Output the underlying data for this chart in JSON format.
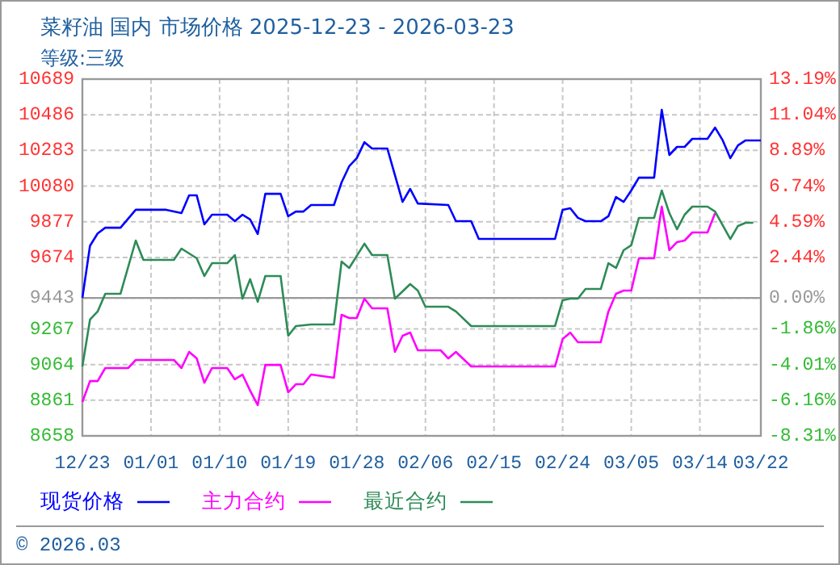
{
  "chart_data": {
    "type": "line",
    "title": "菜籽油 国内 市场价格 2025-12-23 - 2026-03-23",
    "subtitle": "等级:三级",
    "annotations": [
      "© 2026.03"
    ],
    "xlim": [
      "2025-12-23",
      "2026-03-22"
    ],
    "xticks": [
      {
        "value": "2025-12-23",
        "label": "12/23"
      },
      {
        "value": "2026-01-01",
        "label": "01/01"
      },
      {
        "value": "2026-01-10",
        "label": "01/10"
      },
      {
        "value": "2026-01-19",
        "label": "01/19"
      },
      {
        "value": "2026-01-28",
        "label": "01/28"
      },
      {
        "value": "2026-02-06",
        "label": "02/06"
      },
      {
        "value": "2026-02-15",
        "label": "02/15"
      },
      {
        "value": "2026-02-24",
        "label": "02/24"
      },
      {
        "value": "2026-03-05",
        "label": "03/05"
      },
      {
        "value": "2026-03-14",
        "label": "03/14"
      },
      {
        "value": "2026-03-22",
        "label": "03/22"
      }
    ],
    "ylim": [
      8658,
      10689
    ],
    "yticks": [
      10689,
      10486,
      10283,
      10080,
      9877,
      9674,
      9443,
      9267,
      9064,
      8861,
      8658
    ],
    "y2lim": [
      -8.31,
      13.19
    ],
    "y2ticks": [
      {
        "value": 13.19,
        "label": "13.19%"
      },
      {
        "value": 11.04,
        "label": "11.04%"
      },
      {
        "value": 8.89,
        "label": "8.89%"
      },
      {
        "value": 6.74,
        "label": "6.74%"
      },
      {
        "value": 4.59,
        "label": "4.59%"
      },
      {
        "value": 2.44,
        "label": "2.44%"
      },
      {
        "value": 0,
        "label": "0.00%"
      },
      {
        "value": -1.86,
        "label": "-1.86%"
      },
      {
        "value": -4.01,
        "label": "-4.01%"
      },
      {
        "value": -6.16,
        "label": "-6.16%"
      },
      {
        "value": -8.31,
        "label": "-8.31%"
      }
    ],
    "ref_lines": [
      {
        "axis": "y",
        "value": 9443,
        "color": "#999999"
      }
    ],
    "grid": true,
    "legend": "bottom",
    "marker": "none",
    "line_style": "solid",
    "series": [
      {
        "name": "现货价格",
        "color": "#0000ff",
        "x": [
          "2025-12-23",
          "2025-12-24",
          "2025-12-25",
          "2025-12-26",
          "2025-12-28",
          "2025-12-30",
          "2026-01-03",
          "2026-01-05",
          "2026-01-06",
          "2026-01-07",
          "2026-01-08",
          "2026-01-09",
          "2026-01-11",
          "2026-01-12",
          "2026-01-13",
          "2026-01-14",
          "2026-01-15",
          "2026-01-16",
          "2026-01-18",
          "2026-01-19",
          "2026-01-20",
          "2026-01-21",
          "2026-01-22",
          "2026-01-25",
          "2026-01-26",
          "2026-01-27",
          "2026-01-28",
          "2026-01-29",
          "2026-01-30",
          "2026-02-01",
          "2026-02-03",
          "2026-02-04",
          "2026-02-05",
          "2026-02-09",
          "2026-02-10",
          "2026-02-12",
          "2026-02-13",
          "2026-02-23",
          "2026-02-24",
          "2026-02-25",
          "2026-02-26",
          "2026-02-27",
          "2026-03-01",
          "2026-03-02",
          "2026-03-03",
          "2026-03-04",
          "2026-03-05",
          "2026-03-06",
          "2026-03-08",
          "2026-03-09",
          "2026-03-10",
          "2026-03-11",
          "2026-03-12",
          "2026-03-13",
          "2026-03-15",
          "2026-03-16",
          "2026-03-17",
          "2026-03-18",
          "2026-03-19",
          "2026-03-20",
          "2026-03-22"
        ],
        "values": [
          9443,
          9740,
          9810,
          9843,
          9843,
          9945,
          9945,
          9926,
          10027,
          10027,
          9862,
          9917,
          9917,
          9880,
          9917,
          9890,
          9807,
          10036,
          10036,
          9908,
          9935,
          9935,
          9972,
          9972,
          10101,
          10193,
          10239,
          10330,
          10294,
          10294,
          9990,
          10064,
          9981,
          9972,
          9880,
          9880,
          9779,
          9779,
          9945,
          9954,
          9899,
          9880,
          9880,
          9908,
          10018,
          9990,
          10055,
          10128,
          10128,
          10514,
          10257,
          10303,
          10303,
          10349,
          10349,
          10413,
          10340,
          10239,
          10312,
          10340,
          10340
        ]
      },
      {
        "name": "主力合约",
        "color": "#ff00ff",
        "x": [
          "2025-12-23",
          "2025-12-24",
          "2025-12-25",
          "2025-12-26",
          "2025-12-29",
          "2025-12-30",
          "2026-01-04",
          "2026-01-05",
          "2026-01-06",
          "2026-01-07",
          "2026-01-08",
          "2026-01-09",
          "2026-01-11",
          "2026-01-12",
          "2026-01-13",
          "2026-01-14",
          "2026-01-15",
          "2026-01-16",
          "2026-01-18",
          "2026-01-19",
          "2026-01-20",
          "2026-01-21",
          "2026-01-22",
          "2026-01-25",
          "2026-01-26",
          "2026-01-27",
          "2026-01-28",
          "2026-01-29",
          "2026-01-30",
          "2026-02-01",
          "2026-02-02",
          "2026-02-03",
          "2026-02-04",
          "2026-02-05",
          "2026-02-08",
          "2026-02-09",
          "2026-02-10",
          "2026-02-12",
          "2026-02-23",
          "2026-02-24",
          "2026-02-25",
          "2026-02-26",
          "2026-03-01",
          "2026-03-02",
          "2026-03-03",
          "2026-03-04",
          "2026-03-05",
          "2026-03-06",
          "2026-03-08",
          "2026-03-09",
          "2026-03-10",
          "2026-03-11",
          "2026-03-12",
          "2026-03-13",
          "2026-03-15",
          "2026-03-16"
        ],
        "values": [
          8851,
          8970,
          8970,
          9044,
          9044,
          9090,
          9090,
          9044,
          9136,
          9099,
          8961,
          9044,
          9044,
          8980,
          9007,
          8916,
          8833,
          9062,
          9062,
          8906,
          8952,
          8952,
          9007,
          8989,
          9347,
          9329,
          9329,
          9439,
          9384,
          9384,
          9136,
          9228,
          9246,
          9145,
          9145,
          9099,
          9136,
          9053,
          9053,
          9209,
          9246,
          9191,
          9191,
          9366,
          9467,
          9485,
          9485,
          9669,
          9669,
          9963,
          9715,
          9761,
          9770,
          9816,
          9816,
          9926
        ]
      },
      {
        "name": "最近合约",
        "color": "#2e8b57",
        "x": [
          "2025-12-23",
          "2025-12-24",
          "2025-12-25",
          "2025-12-26",
          "2025-12-28",
          "2025-12-30",
          "2025-12-31",
          "2026-01-04",
          "2026-01-05",
          "2026-01-07",
          "2026-01-08",
          "2026-01-09",
          "2026-01-11",
          "2026-01-12",
          "2026-01-13",
          "2026-01-14",
          "2026-01-15",
          "2026-01-16",
          "2026-01-18",
          "2026-01-19",
          "2026-01-20",
          "2026-01-22",
          "2026-01-25",
          "2026-01-26",
          "2026-01-27",
          "2026-01-29",
          "2026-01-30",
          "2026-02-01",
          "2026-02-02",
          "2026-02-04",
          "2026-02-05",
          "2026-02-06",
          "2026-02-09",
          "2026-02-10",
          "2026-02-12",
          "2026-02-23",
          "2026-02-24",
          "2026-02-25",
          "2026-02-26",
          "2026-02-27",
          "2026-03-01",
          "2026-03-02",
          "2026-03-03",
          "2026-03-04",
          "2026-03-05",
          "2026-03-06",
          "2026-03-08",
          "2026-03-09",
          "2026-03-10",
          "2026-03-11",
          "2026-03-12",
          "2026-03-13",
          "2026-03-15",
          "2026-03-16",
          "2026-03-18",
          "2026-03-19",
          "2026-03-20",
          "2026-03-21"
        ],
        "values": [
          9053,
          9320,
          9366,
          9467,
          9467,
          9770,
          9660,
          9660,
          9724,
          9669,
          9568,
          9641,
          9641,
          9687,
          9439,
          9550,
          9421,
          9568,
          9568,
          9228,
          9283,
          9292,
          9292,
          9650,
          9614,
          9752,
          9687,
          9687,
          9439,
          9522,
          9485,
          9393,
          9393,
          9366,
          9283,
          9283,
          9430,
          9439,
          9439,
          9494,
          9494,
          9641,
          9614,
          9715,
          9743,
          9899,
          9899,
          10055,
          9926,
          9834,
          9917,
          9963,
          9963,
          9935,
          9779,
          9853,
          9871,
          9871
        ]
      }
    ]
  }
}
